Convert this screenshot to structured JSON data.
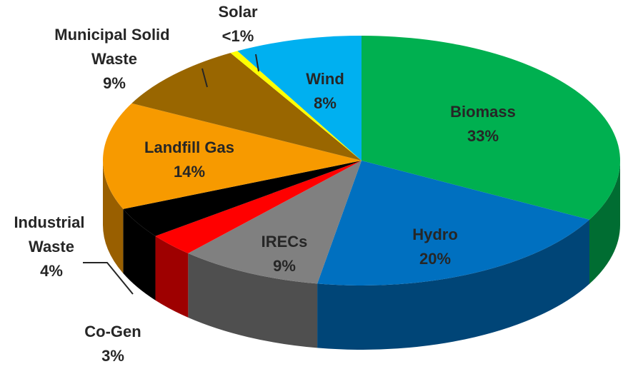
{
  "chart_data": {
    "type": "pie",
    "categories": [
      "Biomass",
      "Hydro",
      "IRECs",
      "Co-Gen",
      "Industrial Waste",
      "Landfill Gas",
      "Municipal Solid Waste",
      "Solar",
      "Wind"
    ],
    "values": [
      33,
      20,
      9,
      3,
      4,
      14,
      9,
      0.5,
      8
    ],
    "value_labels": [
      "33%",
      "20%",
      "9%",
      "3%",
      "4%",
      "14%",
      "9%",
      "<1%",
      "8%"
    ],
    "colors": [
      "#00b050",
      "#0070c0",
      "#808080",
      "#ff0000",
      "#000000",
      "#f79a00",
      "#996600",
      "#ffff00",
      "#00b0f0"
    ]
  }
}
